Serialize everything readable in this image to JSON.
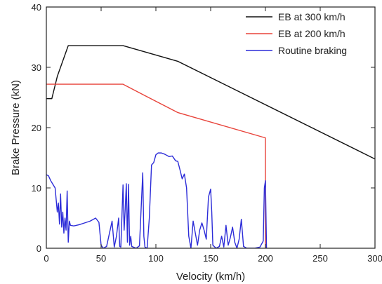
{
  "chart_data": {
    "type": "line",
    "xlabel": "Velocity (km/h)",
    "ylabel": "Brake Pressure (kN)",
    "xlim": [
      0,
      300
    ],
    "ylim": [
      0,
      40
    ],
    "xticks": [
      0,
      50,
      100,
      150,
      200,
      250,
      300
    ],
    "yticks": [
      0,
      10,
      20,
      30,
      40
    ],
    "grid": false,
    "legend_position": "top-right",
    "series": [
      {
        "name": "EB at 300 km/h",
        "color": "#111111",
        "points": [
          [
            0,
            24.8
          ],
          [
            5,
            24.8
          ],
          [
            10,
            28.5
          ],
          [
            20,
            33.6
          ],
          [
            70,
            33.6
          ],
          [
            120,
            31
          ],
          [
            300,
            14.8
          ]
        ]
      },
      {
        "name": "EB at 200 km/h",
        "color": "#e8433a",
        "points": [
          [
            0,
            27.2
          ],
          [
            70,
            27.2
          ],
          [
            90,
            25.3
          ],
          [
            120,
            22.5
          ],
          [
            200,
            18.3
          ],
          [
            200,
            0
          ]
        ]
      },
      {
        "name": "Routine braking",
        "color": "#2c2cd8",
        "points": [
          [
            0,
            12.2
          ],
          [
            2,
            12
          ],
          [
            4,
            11.2
          ],
          [
            6,
            10.6
          ],
          [
            8,
            10
          ],
          [
            9,
            8
          ],
          [
            10,
            6
          ],
          [
            11,
            7.5
          ],
          [
            12,
            4
          ],
          [
            13,
            9
          ],
          [
            14,
            3.5
          ],
          [
            15,
            6
          ],
          [
            16,
            2.5
          ],
          [
            17,
            5
          ],
          [
            18,
            3
          ],
          [
            19,
            9.5
          ],
          [
            20,
            1
          ],
          [
            21,
            4.5
          ],
          [
            22,
            3.8
          ],
          [
            25,
            3.7
          ],
          [
            30,
            3.9
          ],
          [
            35,
            4.2
          ],
          [
            40,
            4.5
          ],
          [
            45,
            5
          ],
          [
            48,
            4.3
          ],
          [
            50,
            0.5
          ],
          [
            52,
            0
          ],
          [
            55,
            0.3
          ],
          [
            60,
            4.5
          ],
          [
            62,
            0.2
          ],
          [
            64,
            2
          ],
          [
            66,
            5
          ],
          [
            67,
            0.3
          ],
          [
            68,
            0.2
          ],
          [
            70,
            10.5
          ],
          [
            71,
            3
          ],
          [
            72,
            6.5
          ],
          [
            73,
            10.7
          ],
          [
            74,
            1
          ],
          [
            75,
            10.6
          ],
          [
            76,
            0.5
          ],
          [
            77,
            2
          ],
          [
            78,
            0.3
          ],
          [
            82,
            0
          ],
          [
            85,
            0.4
          ],
          [
            88,
            12.5
          ],
          [
            89,
            2
          ],
          [
            90,
            0.2
          ],
          [
            92,
            0
          ],
          [
            94,
            5
          ],
          [
            96,
            13.8
          ],
          [
            98,
            14.2
          ],
          [
            100,
            15.5
          ],
          [
            102,
            15.8
          ],
          [
            105,
            15.8
          ],
          [
            108,
            15.6
          ],
          [
            110,
            15.4
          ],
          [
            112,
            15.2
          ],
          [
            115,
            15.3
          ],
          [
            118,
            14.5
          ],
          [
            120,
            14.4
          ],
          [
            122,
            13
          ],
          [
            124,
            11.5
          ],
          [
            126,
            12.3
          ],
          [
            128,
            10
          ],
          [
            130,
            2
          ],
          [
            132,
            0
          ],
          [
            134,
            4.5
          ],
          [
            136,
            2.5
          ],
          [
            138,
            0.5
          ],
          [
            140,
            3
          ],
          [
            142,
            4.2
          ],
          [
            144,
            3
          ],
          [
            146,
            1.5
          ],
          [
            148,
            8.5
          ],
          [
            150,
            9.8
          ],
          [
            151,
            6
          ],
          [
            152,
            0.5
          ],
          [
            155,
            0
          ],
          [
            158,
            0.3
          ],
          [
            160,
            2
          ],
          [
            162,
            0.2
          ],
          [
            164,
            3.8
          ],
          [
            166,
            0.5
          ],
          [
            168,
            1.8
          ],
          [
            170,
            3.5
          ],
          [
            172,
            1
          ],
          [
            174,
            0
          ],
          [
            176,
            1.5
          ],
          [
            178,
            4.8
          ],
          [
            180,
            0.3
          ],
          [
            183,
            0
          ],
          [
            190,
            0
          ],
          [
            195,
            0.2
          ],
          [
            198,
            1.2
          ],
          [
            199,
            10
          ],
          [
            200,
            11.2
          ],
          [
            201,
            0
          ]
        ]
      }
    ]
  }
}
